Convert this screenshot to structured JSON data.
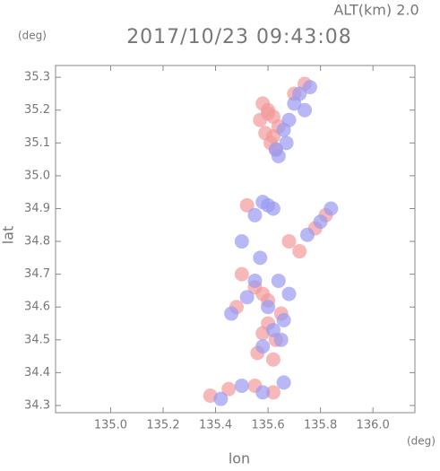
{
  "chart_data": {
    "type": "scatter",
    "title": "2017/10/23 09:43:08",
    "subtitle": "ALT(km) 2.0",
    "y_unit": "(deg)",
    "x_unit": "(deg)",
    "xlabel": "lon",
    "ylabel": "lat",
    "xlim": [
      134.79,
      136.16
    ],
    "ylim": [
      34.278,
      35.336
    ],
    "xticks": [
      {
        "value": 135.0,
        "label": "135.0"
      },
      135.2,
      135.4,
      135.6,
      135.8,
      {
        "value": 136.0,
        "label": "136.0"
      }
    ],
    "yticks": [
      34.3,
      34.4,
      34.5,
      34.6,
      34.7,
      34.8,
      34.9,
      {
        "value": 35.0,
        "label": "35.0"
      },
      35.1,
      35.2,
      35.3
    ],
    "series": [
      {
        "color": "#f29a9a",
        "x": [
          135.58,
          135.6,
          135.62,
          135.64,
          135.59,
          135.61,
          135.63,
          135.6,
          135.57,
          135.62,
          135.7,
          135.74,
          135.52,
          135.68,
          135.78,
          135.82,
          135.72,
          135.5,
          135.55,
          135.6,
          135.65,
          135.48,
          135.58,
          135.63,
          135.56,
          135.62,
          135.6,
          135.58,
          135.38,
          135.45,
          135.55,
          135.62
        ],
        "y": [
          35.22,
          35.2,
          35.18,
          35.15,
          35.13,
          35.1,
          35.08,
          35.19,
          35.17,
          35.12,
          35.25,
          35.28,
          34.91,
          34.8,
          34.84,
          34.88,
          34.77,
          34.7,
          34.66,
          34.62,
          34.58,
          34.6,
          34.52,
          34.5,
          34.46,
          34.44,
          34.55,
          34.64,
          34.33,
          34.35,
          34.36,
          34.34
        ]
      },
      {
        "color": "#9a9af2",
        "x": [
          135.7,
          135.72,
          135.74,
          135.68,
          135.76,
          135.66,
          135.63,
          135.64,
          135.67,
          135.58,
          135.6,
          135.62,
          135.55,
          135.75,
          135.8,
          135.84,
          135.5,
          135.57,
          135.64,
          135.68,
          135.46,
          135.52,
          135.6,
          135.66,
          135.58,
          135.62,
          135.55,
          135.65,
          135.42,
          135.5,
          135.58,
          135.66
        ],
        "y": [
          35.22,
          35.25,
          35.2,
          35.17,
          35.27,
          35.14,
          35.08,
          35.06,
          35.1,
          34.92,
          34.91,
          34.9,
          34.88,
          34.82,
          34.86,
          34.9,
          34.8,
          34.75,
          34.68,
          34.64,
          34.58,
          34.63,
          34.6,
          34.56,
          34.48,
          34.53,
          34.68,
          34.5,
          34.32,
          34.36,
          34.34,
          34.37
        ]
      }
    ]
  }
}
